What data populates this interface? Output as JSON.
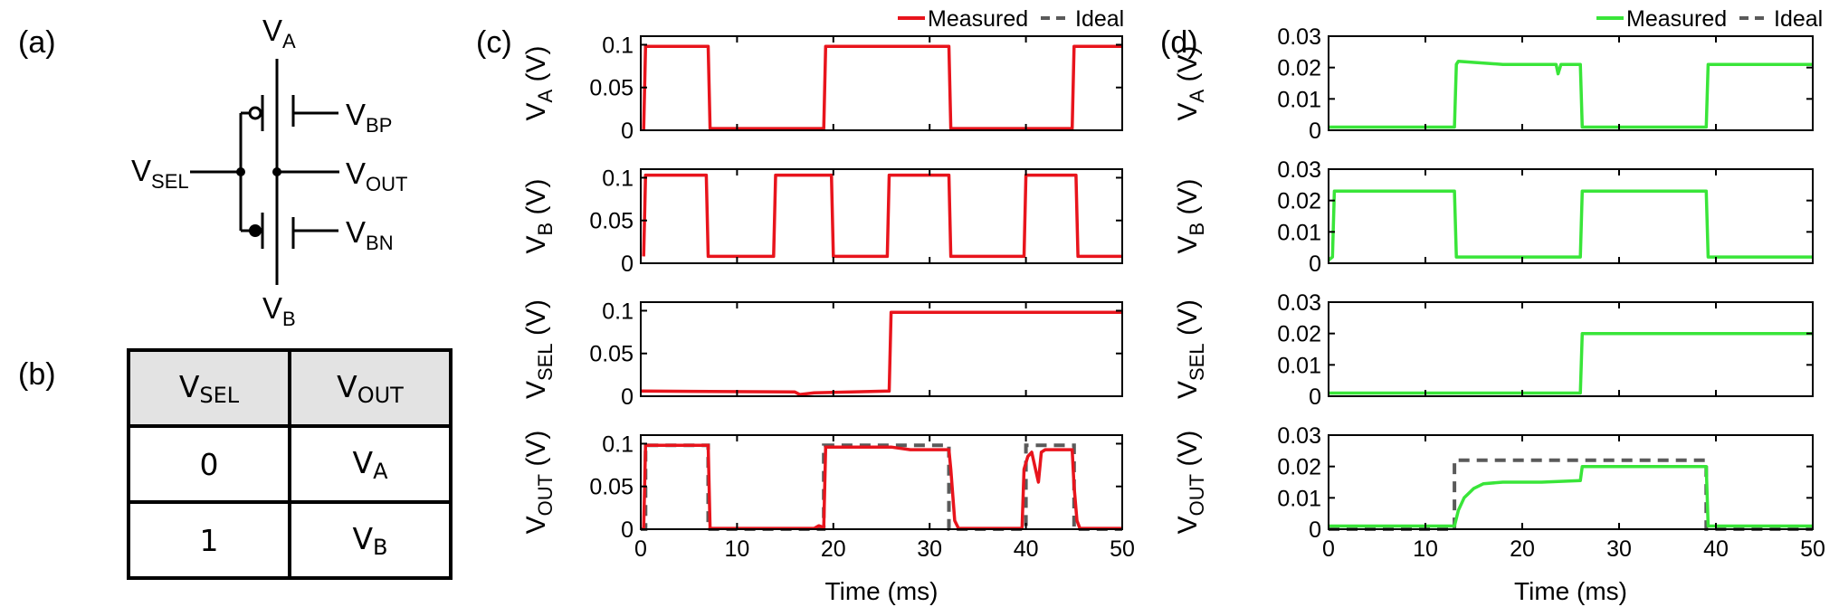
{
  "panel_labels": {
    "a": "(a)",
    "b": "(b)",
    "c": "(c)",
    "d": "(d)"
  },
  "circuit": {
    "va": {
      "base": "V",
      "sub": "A"
    },
    "vb": {
      "base": "V",
      "sub": "B"
    },
    "vsel": {
      "base": "V",
      "sub": "SEL"
    },
    "vout": {
      "base": "V",
      "sub": "OUT"
    },
    "vbp": {
      "base": "V",
      "sub": "BP"
    },
    "vbn": {
      "base": "V",
      "sub": "BN"
    }
  },
  "truth_table": {
    "header": [
      {
        "base": "V",
        "sub": "SEL"
      },
      {
        "base": "V",
        "sub": "OUT"
      }
    ],
    "rows": [
      {
        "sel": "0",
        "out_base": "V",
        "out_sub": "A"
      },
      {
        "sel": "1",
        "out_base": "V",
        "out_sub": "B"
      }
    ]
  },
  "chart_data": [
    {
      "type": "line",
      "panel": "(c)",
      "legend": {
        "placement": "top-right",
        "entries": [
          "Measured",
          "Ideal"
        ]
      },
      "measured_color": "#e8141c",
      "ideal_color": "#5a5a5a",
      "xlabel": "Time (ms)",
      "xlim": [
        0,
        50
      ],
      "xticks": [
        0,
        10,
        20,
        30,
        40,
        50
      ],
      "subplots": [
        {
          "ylabel_base": "V",
          "ylabel_sub": "A",
          "ylabel_unit": " (V)",
          "ylim": [
            0,
            0.11
          ],
          "yticks": [
            0,
            0.05,
            0.1
          ],
          "ytick_labels": [
            "0",
            "0.05",
            "0.1"
          ],
          "measured": [
            [
              0.3,
              0
            ],
            [
              0.5,
              0.098
            ],
            [
              7,
              0.098
            ],
            [
              7.2,
              0.002
            ],
            [
              19,
              0.002
            ],
            [
              19.2,
              0.098
            ],
            [
              32,
              0.098
            ],
            [
              32.2,
              0.002
            ],
            [
              44.8,
              0.002
            ],
            [
              45,
              0.098
            ],
            [
              50,
              0.098
            ]
          ]
        },
        {
          "ylabel_base": "V",
          "ylabel_sub": "B",
          "ylabel_unit": " (V)",
          "ylim": [
            0,
            0.11
          ],
          "yticks": [
            0,
            0.05,
            0.1
          ],
          "ytick_labels": [
            "0",
            "0.05",
            "0.1"
          ],
          "measured": [
            [
              0.3,
              0.008
            ],
            [
              0.5,
              0.103
            ],
            [
              6.8,
              0.103
            ],
            [
              7,
              0.008
            ],
            [
              13.8,
              0.008
            ],
            [
              14,
              0.103
            ],
            [
              19.8,
              0.103
            ],
            [
              20,
              0.008
            ],
            [
              25.6,
              0.008
            ],
            [
              25.8,
              0.103
            ],
            [
              32,
              0.103
            ],
            [
              32.2,
              0.008
            ],
            [
              39.8,
              0.008
            ],
            [
              40,
              0.103
            ],
            [
              45.2,
              0.103
            ],
            [
              45.4,
              0.008
            ],
            [
              50,
              0.008
            ]
          ]
        },
        {
          "ylabel_base": "V",
          "ylabel_sub": "SEL",
          "ylabel_unit": " (V)",
          "ylim": [
            0,
            0.11
          ],
          "yticks": [
            0,
            0.05,
            0.1
          ],
          "ytick_labels": [
            "0",
            "0.05",
            "0.1"
          ],
          "measured": [
            [
              0,
              0.006
            ],
            [
              16,
              0.005
            ],
            [
              16.5,
              0.002
            ],
            [
              18,
              0.004
            ],
            [
              25.8,
              0.006
            ],
            [
              26,
              0.098
            ],
            [
              50,
              0.098
            ]
          ]
        },
        {
          "ylabel_base": "V",
          "ylabel_sub": "OUT",
          "ylabel_unit": " (V)",
          "ylim": [
            0,
            0.11
          ],
          "yticks": [
            0,
            0.05,
            0.1
          ],
          "ytick_labels": [
            "0",
            "0.05",
            "0.1"
          ],
          "measured": [
            [
              0.3,
              0
            ],
            [
              0.5,
              0.098
            ],
            [
              7,
              0.098
            ],
            [
              7.2,
              0.001
            ],
            [
              18,
              0.001
            ],
            [
              18.5,
              0.004
            ],
            [
              19,
              0.002
            ],
            [
              19.2,
              0.096
            ],
            [
              26,
              0.096
            ],
            [
              28,
              0.093
            ],
            [
              32,
              0.093
            ],
            [
              32.2,
              0.07
            ],
            [
              32.6,
              0.01
            ],
            [
              33,
              0.001
            ],
            [
              39.6,
              0.001
            ],
            [
              39.8,
              0.07
            ],
            [
              40.2,
              0.085
            ],
            [
              40.6,
              0.09
            ],
            [
              41,
              0.07
            ],
            [
              41.3,
              0.055
            ],
            [
              41.6,
              0.09
            ],
            [
              42,
              0.093
            ],
            [
              44.8,
              0.093
            ],
            [
              45,
              0.05
            ],
            [
              45.3,
              0.01
            ],
            [
              45.6,
              0.001
            ],
            [
              50,
              0.001
            ]
          ],
          "ideal": [
            [
              0,
              0
            ],
            [
              0.5,
              0
            ],
            [
              0.5,
              0.098
            ],
            [
              7,
              0.098
            ],
            [
              7,
              0
            ],
            [
              19,
              0
            ],
            [
              19,
              0.098
            ],
            [
              32,
              0.098
            ],
            [
              32,
              0
            ],
            [
              40,
              0
            ],
            [
              40,
              0.098
            ],
            [
              45,
              0.098
            ],
            [
              45,
              0
            ],
            [
              50,
              0
            ]
          ]
        }
      ]
    },
    {
      "type": "line",
      "panel": "(d)",
      "legend": {
        "placement": "top-right",
        "entries": [
          "Measured",
          "Ideal"
        ]
      },
      "measured_color": "#39e539",
      "ideal_color": "#5a5a5a",
      "xlabel": "Time (ms)",
      "xlim": [
        0,
        50
      ],
      "xticks": [
        0,
        10,
        20,
        30,
        40,
        50
      ],
      "subplots": [
        {
          "ylabel_base": "V",
          "ylabel_sub": "A",
          "ylabel_unit": " (V)",
          "ylim": [
            0,
            0.03
          ],
          "yticks": [
            0,
            0.01,
            0.02,
            0.03
          ],
          "ytick_labels": [
            "0",
            "0.01",
            "0.02",
            "0.03"
          ],
          "measured": [
            [
              0,
              0.001
            ],
            [
              13,
              0.001
            ],
            [
              13.2,
              0.021
            ],
            [
              13.4,
              0.022
            ],
            [
              18,
              0.021
            ],
            [
              23.5,
              0.021
            ],
            [
              23.7,
              0.018
            ],
            [
              24,
              0.021
            ],
            [
              26,
              0.021
            ],
            [
              26.2,
              0.001
            ],
            [
              39,
              0.001
            ],
            [
              39.2,
              0.021
            ],
            [
              50,
              0.021
            ]
          ]
        },
        {
          "ylabel_base": "V",
          "ylabel_sub": "B",
          "ylabel_unit": " (V)",
          "ylim": [
            0,
            0.03
          ],
          "yticks": [
            0,
            0.01,
            0.02,
            0.03
          ],
          "ytick_labels": [
            "0",
            "0.01",
            "0.02",
            "0.03"
          ],
          "measured": [
            [
              0,
              0.001
            ],
            [
              0.4,
              0.002
            ],
            [
              0.6,
              0.023
            ],
            [
              13,
              0.023
            ],
            [
              13.2,
              0.002
            ],
            [
              26,
              0.002
            ],
            [
              26.2,
              0.023
            ],
            [
              39,
              0.023
            ],
            [
              39.2,
              0.002
            ],
            [
              50,
              0.002
            ]
          ]
        },
        {
          "ylabel_base": "V",
          "ylabel_sub": "SEL",
          "ylabel_unit": " (V)",
          "ylim": [
            0,
            0.03
          ],
          "yticks": [
            0,
            0.01,
            0.02,
            0.03
          ],
          "ytick_labels": [
            "0",
            "0.01",
            "0.02",
            "0.03"
          ],
          "measured": [
            [
              0,
              0.001
            ],
            [
              26,
              0.001
            ],
            [
              26.2,
              0.02
            ],
            [
              50,
              0.02
            ]
          ]
        },
        {
          "ylabel_base": "V",
          "ylabel_sub": "OUT",
          "ylabel_unit": " (V)",
          "ylim": [
            0,
            0.03
          ],
          "yticks": [
            0,
            0.01,
            0.02,
            0.03
          ],
          "ytick_labels": [
            "0",
            "0.01",
            "0.02",
            "0.03"
          ],
          "measured": [
            [
              0,
              0.001
            ],
            [
              13,
              0.001
            ],
            [
              13.4,
              0.006
            ],
            [
              14,
              0.01
            ],
            [
              15,
              0.013
            ],
            [
              16,
              0.0145
            ],
            [
              18,
              0.015
            ],
            [
              22,
              0.015
            ],
            [
              26,
              0.0155
            ],
            [
              26.2,
              0.02
            ],
            [
              39,
              0.02
            ],
            [
              39.2,
              0.001
            ],
            [
              50,
              0.001
            ]
          ],
          "ideal": [
            [
              0,
              0
            ],
            [
              13,
              0
            ],
            [
              13,
              0.022
            ],
            [
              39,
              0.022
            ],
            [
              39,
              0
            ],
            [
              50,
              0
            ]
          ]
        }
      ]
    }
  ]
}
